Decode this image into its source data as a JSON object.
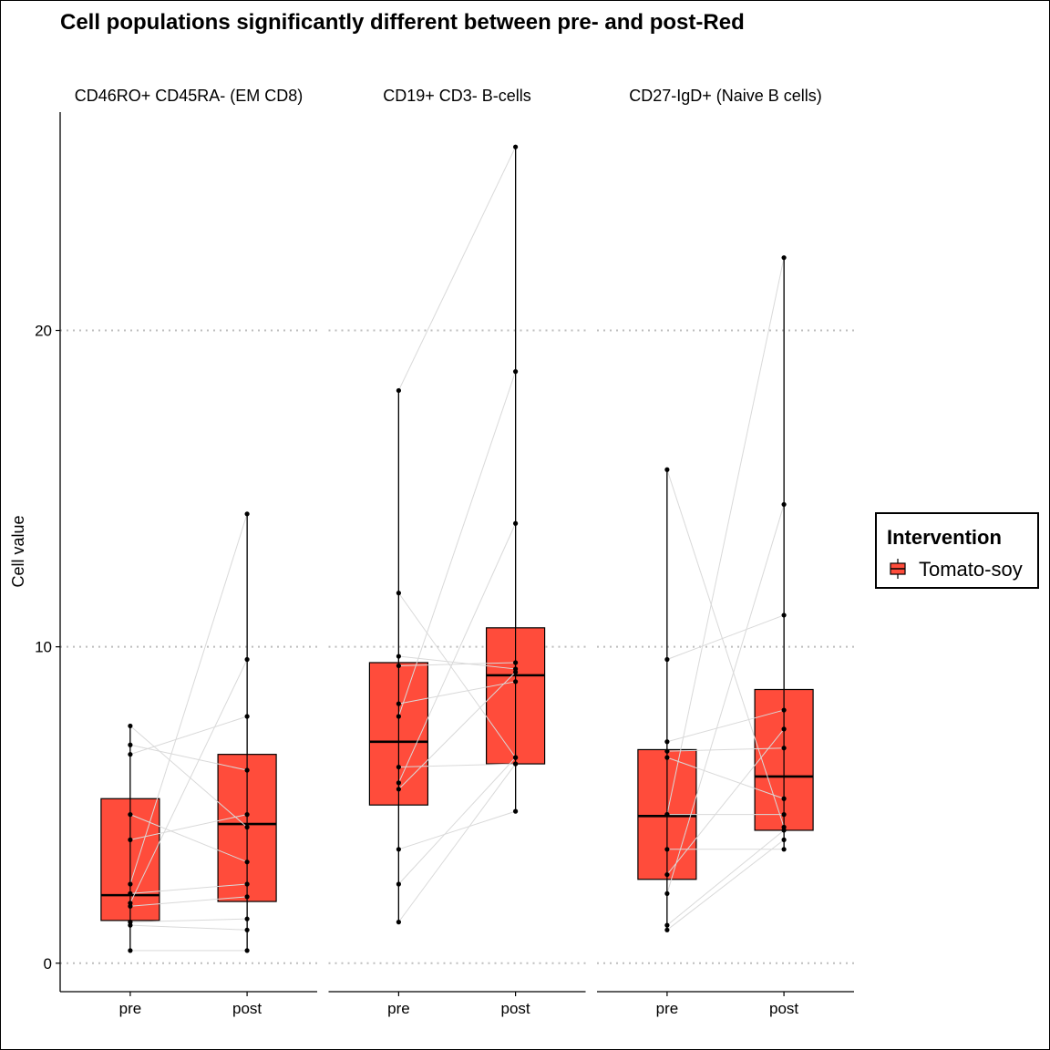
{
  "chart_data": {
    "type": "box",
    "title": "Cell populations significantly different between pre- and post-Red",
    "ylabel": "Cell value",
    "xlabel": "",
    "ylim": [
      -0.9,
      26.9
    ],
    "y_ticks": [
      0,
      10,
      20
    ],
    "categories": [
      "pre",
      "post"
    ],
    "grid": "horizontal dotted at major ticks",
    "legend": {
      "title": "Intervention",
      "position": "right",
      "items": [
        {
          "label": "Tomato-soy",
          "color": "#FF4C3B"
        }
      ]
    },
    "colors": {
      "box_fill": "#FF4C3B",
      "pair_line": "#d9d9d9",
      "point": "#000000"
    },
    "facets": [
      {
        "label": "CD46RO+ CD45RA- (EM CD8)",
        "boxes": [
          {
            "group": "pre",
            "min": 0.4,
            "q1": 1.35,
            "median": 2.15,
            "q3": 5.2,
            "max": 7.5
          },
          {
            "group": "post",
            "min": 0.4,
            "q1": 1.95,
            "median": 4.4,
            "q3": 6.6,
            "max": 14.2
          }
        ],
        "pairs": [
          [
            0.4,
            0.4
          ],
          [
            1.2,
            1.05
          ],
          [
            1.3,
            1.4
          ],
          [
            1.8,
            2.1
          ],
          [
            1.9,
            9.6
          ],
          [
            2.2,
            2.5
          ],
          [
            2.5,
            14.2
          ],
          [
            3.9,
            4.7
          ],
          [
            4.7,
            3.2
          ],
          [
            6.6,
            7.8
          ],
          [
            6.9,
            6.1
          ],
          [
            7.5,
            4.3
          ]
        ]
      },
      {
        "label": "CD19+ CD3- B-cells",
        "boxes": [
          {
            "group": "pre",
            "min": 1.3,
            "q1": 5.0,
            "median": 7.0,
            "q3": 9.5,
            "max": 18.1
          },
          {
            "group": "post",
            "min": 4.8,
            "q1": 6.3,
            "median": 9.1,
            "q3": 10.6,
            "max": 25.8
          }
        ],
        "pairs": [
          [
            1.3,
            6.3
          ],
          [
            2.5,
            6.5
          ],
          [
            3.6,
            4.8
          ],
          [
            5.5,
            9.2
          ],
          [
            5.7,
            13.9
          ],
          [
            6.2,
            6.3
          ],
          [
            7.8,
            18.7
          ],
          [
            8.2,
            8.9
          ],
          [
            9.4,
            9.5
          ],
          [
            9.7,
            9.3
          ],
          [
            11.7,
            6.5
          ],
          [
            18.1,
            25.8
          ]
        ]
      },
      {
        "label": "CD27-IgD+ (Naive B cells)",
        "boxes": [
          {
            "group": "pre",
            "min": 1.05,
            "q1": 2.65,
            "median": 4.65,
            "q3": 6.75,
            "max": 15.6
          },
          {
            "group": "post",
            "min": 3.6,
            "q1": 4.2,
            "median": 5.9,
            "q3": 8.65,
            "max": 22.3
          }
        ],
        "pairs": [
          [
            1.05,
            3.9
          ],
          [
            1.2,
            4.2
          ],
          [
            2.2,
            14.5
          ],
          [
            2.8,
            7.4
          ],
          [
            3.6,
            3.6
          ],
          [
            4.7,
            4.7
          ],
          [
            4.7,
            22.3
          ],
          [
            6.5,
            5.2
          ],
          [
            6.7,
            6.8
          ],
          [
            7.0,
            8.0
          ],
          [
            9.6,
            11.0
          ],
          [
            15.6,
            4.3
          ]
        ]
      }
    ]
  }
}
